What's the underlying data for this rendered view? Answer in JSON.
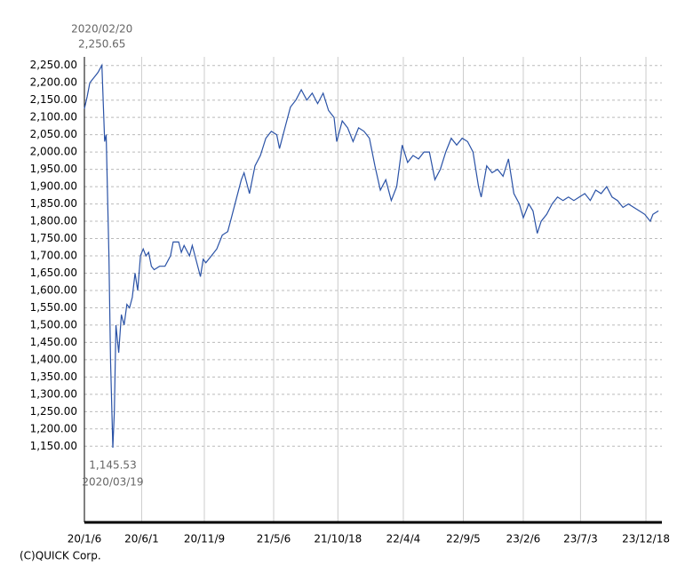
{
  "chart_data": {
    "type": "line",
    "footer": "(C)QUICK Corp.",
    "grid": true,
    "xlim": [
      "2020/01/06",
      "2024/01/28"
    ],
    "ylim": [
      930,
      2275
    ],
    "xticks": [
      {
        "value": "2020/01/06",
        "label": "20/1/6"
      },
      {
        "value": "2020/06/01",
        "label": "20/6/1"
      },
      {
        "value": "2020/11/09",
        "label": "20/11/9"
      },
      {
        "value": "2021/05/06",
        "label": "21/5/6"
      },
      {
        "value": "2021/10/18",
        "label": "21/10/18"
      },
      {
        "value": "2022/04/04",
        "label": "22/4/4"
      },
      {
        "value": "2022/09/05",
        "label": "22/9/5"
      },
      {
        "value": "2023/02/06",
        "label": "23/2/6"
      },
      {
        "value": "2023/07/03",
        "label": "23/7/3"
      },
      {
        "value": "2023/12/18",
        "label": "23/12/18"
      }
    ],
    "yticks": [
      {
        "value": 1150,
        "label": "1,150.00"
      },
      {
        "value": 1200,
        "label": "1,200.00"
      },
      {
        "value": 1250,
        "label": "1,250.00"
      },
      {
        "value": 1300,
        "label": "1,300.00"
      },
      {
        "value": 1350,
        "label": "1,350.00"
      },
      {
        "value": 1400,
        "label": "1,400.00"
      },
      {
        "value": 1450,
        "label": "1,450.00"
      },
      {
        "value": 1500,
        "label": "1,500.00"
      },
      {
        "value": 1550,
        "label": "1,550.00"
      },
      {
        "value": 1600,
        "label": "1,600.00"
      },
      {
        "value": 1650,
        "label": "1,650.00"
      },
      {
        "value": 1700,
        "label": "1,700.00"
      },
      {
        "value": 1750,
        "label": "1,750.00"
      },
      {
        "value": 1800,
        "label": "1,800.00"
      },
      {
        "value": 1850,
        "label": "1,850.00"
      },
      {
        "value": 1900,
        "label": "1,900.00"
      },
      {
        "value": 1950,
        "label": "1,950.00"
      },
      {
        "value": 2000,
        "label": "2,000.00"
      },
      {
        "value": 2050,
        "label": "2,050.00"
      },
      {
        "value": 2100,
        "label": "2,100.00"
      },
      {
        "value": 2150,
        "label": "2,150.00"
      },
      {
        "value": 2200,
        "label": "2,200.00"
      },
      {
        "value": 2250,
        "label": "2,250.00"
      }
    ],
    "annotations": [
      {
        "x": "2020/02/20",
        "value": 2250.65,
        "label": "2,250.65",
        "position": "above"
      },
      {
        "x": "2020/03/19",
        "value": 1145.53,
        "label": "1,145.53",
        "position": "below"
      }
    ],
    "series": [
      {
        "color": "#2a52a6",
        "x": [
          "2020/01/06",
          "2020/01/13",
          "2020/01/20",
          "2020/01/27",
          "2020/02/03",
          "2020/02/10",
          "2020/02/20",
          "2020/02/27",
          "2020/03/02",
          "2020/03/09",
          "2020/03/13",
          "2020/03/19",
          "2020/03/23",
          "2020/03/27",
          "2020/04/03",
          "2020/04/10",
          "2020/04/17",
          "2020/04/24",
          "2020/05/01",
          "2020/05/08",
          "2020/05/15",
          "2020/05/22",
          "2020/05/29",
          "2020/06/05",
          "2020/06/12",
          "2020/06/19",
          "2020/06/26",
          "2020/07/03",
          "2020/07/17",
          "2020/07/31",
          "2020/08/14",
          "2020/08/21",
          "2020/09/04",
          "2020/09/11",
          "2020/09/18",
          "2020/10/02",
          "2020/10/09",
          "2020/10/16",
          "2020/10/30",
          "2020/11/06",
          "2020/11/13",
          "2020/11/27",
          "2020/12/11",
          "2020/12/25",
          "2021/01/08",
          "2021/01/15",
          "2021/01/29",
          "2021/02/12",
          "2021/02/19",
          "2021/03/05",
          "2021/03/19",
          "2021/04/02",
          "2021/04/16",
          "2021/04/30",
          "2021/05/14",
          "2021/05/21",
          "2021/06/04",
          "2021/06/18",
          "2021/07/02",
          "2021/07/16",
          "2021/07/30",
          "2021/08/13",
          "2021/08/27",
          "2021/09/10",
          "2021/09/24",
          "2021/10/08",
          "2021/10/15",
          "2021/10/29",
          "2021/11/12",
          "2021/11/26",
          "2021/12/10",
          "2021/12/24",
          "2022/01/07",
          "2022/01/21",
          "2022/02/04",
          "2022/02/18",
          "2022/03/04",
          "2022/03/18",
          "2022/04/01",
          "2022/04/15",
          "2022/04/29",
          "2022/05/13",
          "2022/05/27",
          "2022/06/10",
          "2022/06/24",
          "2022/07/08",
          "2022/07/22",
          "2022/08/05",
          "2022/08/19",
          "2022/09/02",
          "2022/09/16",
          "2022/09/30",
          "2022/10/14",
          "2022/10/21",
          "2022/11/04",
          "2022/11/18",
          "2022/12/02",
          "2022/12/16",
          "2022/12/30",
          "2023/01/13",
          "2023/01/27",
          "2023/02/06",
          "2023/02/20",
          "2023/03/03",
          "2023/03/14",
          "2023/03/24",
          "2023/04/07",
          "2023/04/21",
          "2023/05/05",
          "2023/05/19",
          "2023/06/02",
          "2023/06/16",
          "2023/06/30",
          "2023/07/14",
          "2023/07/28",
          "2023/08/11",
          "2023/08/25",
          "2023/09/08",
          "2023/09/22",
          "2023/10/06",
          "2023/10/20",
          "2023/11/03",
          "2023/11/17",
          "2023/12/01",
          "2023/12/15",
          "2023/12/29",
          "2024/01/05",
          "2024/01/19"
        ],
        "values": [
          2125,
          2160,
          2200,
          2210,
          2220,
          2230,
          2250.65,
          2030,
          2050,
          1700,
          1400,
          1145.53,
          1250,
          1500,
          1420,
          1530,
          1500,
          1560,
          1550,
          1580,
          1650,
          1600,
          1700,
          1720,
          1700,
          1710,
          1670,
          1660,
          1670,
          1670,
          1700,
          1740,
          1740,
          1710,
          1730,
          1700,
          1730,
          1700,
          1640,
          1690,
          1680,
          1700,
          1720,
          1760,
          1770,
          1800,
          1860,
          1920,
          1940,
          1880,
          1960,
          1990,
          2040,
          2060,
          2050,
          2010,
          2070,
          2130,
          2150,
          2180,
          2150,
          2170,
          2140,
          2170,
          2120,
          2100,
          2030,
          2090,
          2070,
          2030,
          2070,
          2060,
          2040,
          1960,
          1890,
          1920,
          1860,
          1900,
          2020,
          1970,
          1990,
          1980,
          2000,
          2000,
          1920,
          1950,
          2000,
          2040,
          2020,
          2040,
          2030,
          2000,
          1900,
          1870,
          1960,
          1940,
          1950,
          1930,
          1980,
          1880,
          1850,
          1810,
          1850,
          1830,
          1765,
          1800,
          1820,
          1850,
          1870,
          1860,
          1870,
          1860,
          1870,
          1880,
          1860,
          1890,
          1880,
          1900,
          1870,
          1860,
          1840,
          1850,
          1840,
          1830,
          1820,
          1800,
          1820,
          1830
        ]
      }
    ]
  }
}
